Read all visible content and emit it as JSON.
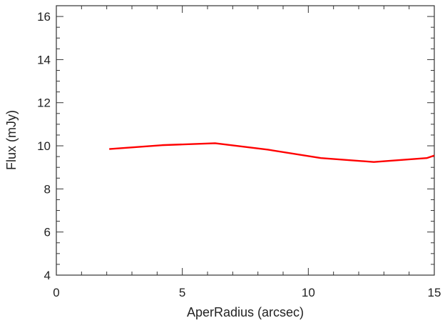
{
  "chart_data": {
    "type": "line",
    "title": "",
    "xlabel": "AperRadius (arcsec)",
    "ylabel": "Flux (mJy)",
    "xlim": [
      0,
      15
    ],
    "ylim": [
      4,
      16.5
    ],
    "xticks": [
      0,
      5,
      10,
      15
    ],
    "yticks": [
      4,
      6,
      8,
      10,
      12,
      14,
      16
    ],
    "xtick_labels": [
      "0",
      "5",
      "10",
      "15"
    ],
    "ytick_labels": [
      "4",
      "6",
      "8",
      "10",
      "12",
      "14",
      "16"
    ],
    "grid": false,
    "series": [
      {
        "color": "#ff0000",
        "x": [
          2.1,
          4.2,
          6.3,
          8.4,
          10.5,
          12.6,
          14.7,
          15.0
        ],
        "y": [
          9.85,
          10.03,
          10.12,
          9.82,
          9.43,
          9.25,
          9.43,
          9.55
        ]
      }
    ]
  }
}
